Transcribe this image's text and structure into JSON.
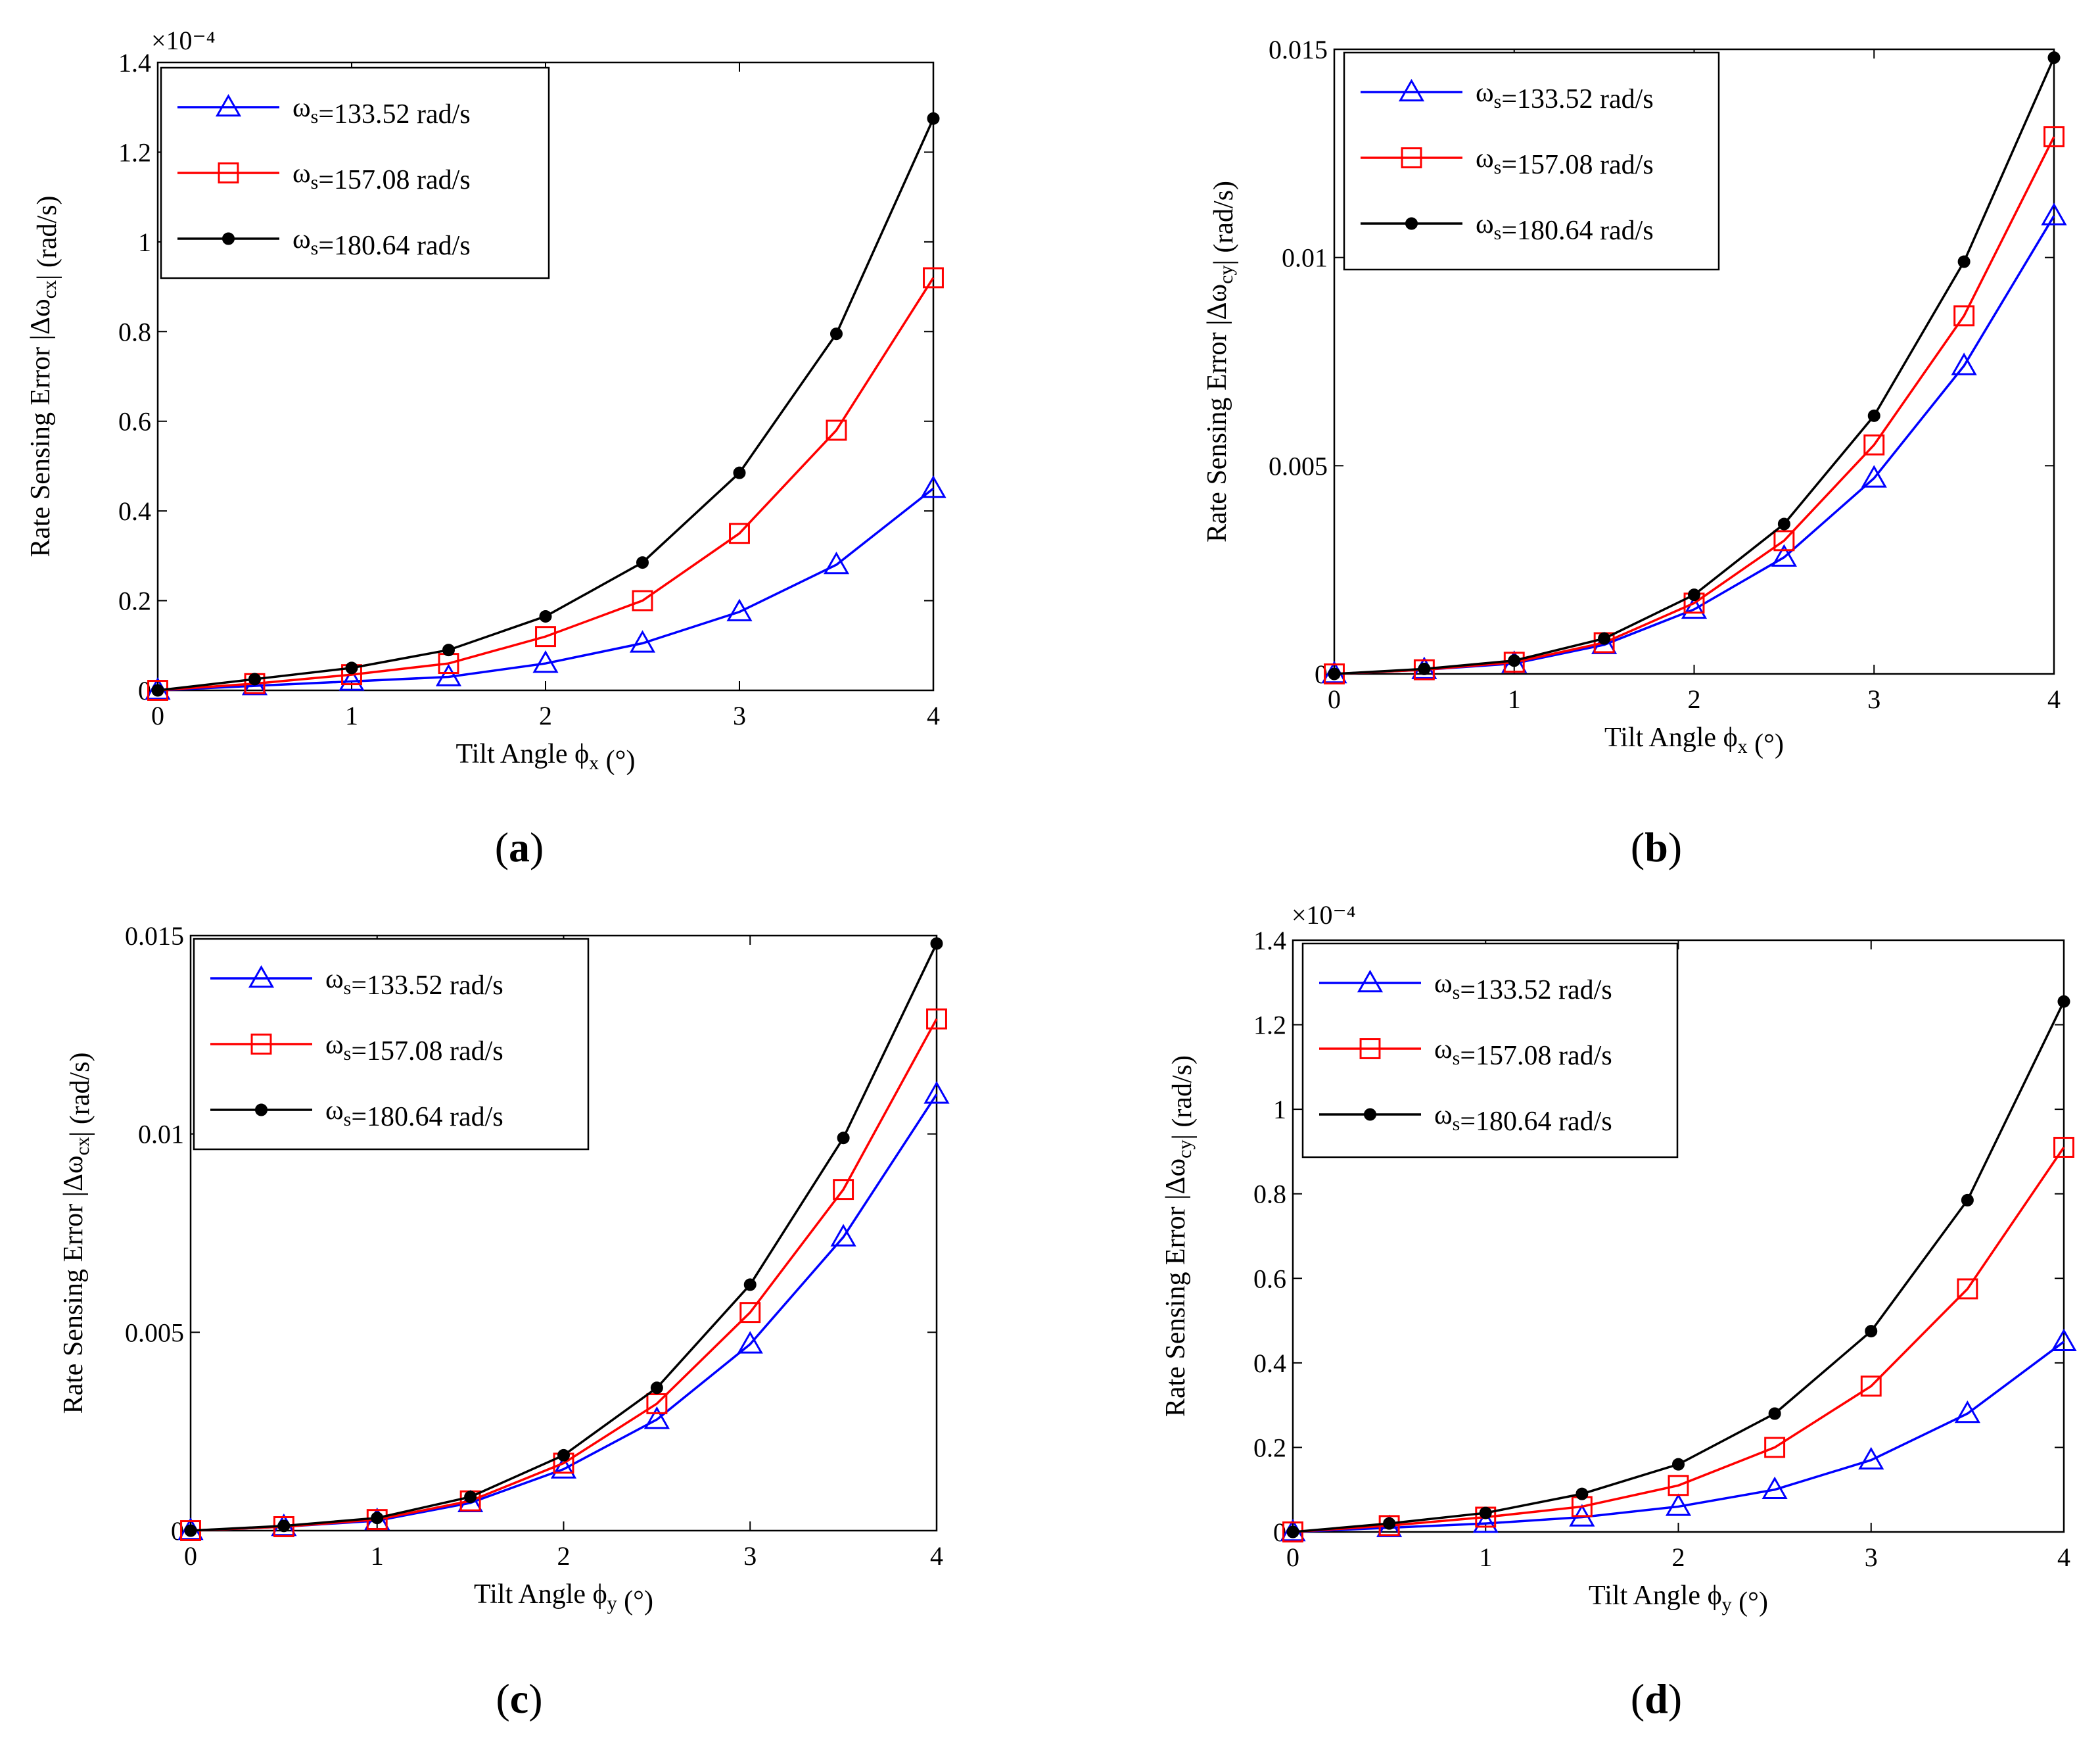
{
  "figure": {
    "panel_labels": [
      "(a)",
      "(b)",
      "(c)",
      "(d)"
    ]
  },
  "chart_data": [
    {
      "panel": "a",
      "type": "line",
      "xlabel": "Tilt Angle ϕx (°)",
      "ylabel": "Rate Sensing Error |Δωcx| (rad/s)",
      "exponent_label": "×10⁻⁴",
      "xlim": [
        0,
        4
      ],
      "ylim": [
        0,
        1.4
      ],
      "xticks": [
        0,
        1,
        2,
        3,
        4
      ],
      "xtick_labels": [
        "0",
        "1",
        "2",
        "3",
        "4"
      ],
      "yticks": [
        0,
        0.2,
        0.4,
        0.6,
        0.8,
        1.0,
        1.2,
        1.4
      ],
      "ytick_labels": [
        "0",
        "0.2",
        "0.4",
        "0.6",
        "0.8",
        "1",
        "1.2",
        "1.4"
      ],
      "x": [
        0,
        0.5,
        1,
        1.5,
        2,
        2.5,
        3,
        3.5,
        4
      ],
      "series": [
        {
          "name": "ωs=133.52 rad/s",
          "color": "#0000ff",
          "marker": "triangle",
          "values": [
            0,
            0.01,
            0.02,
            0.03,
            0.06,
            0.105,
            0.175,
            0.28,
            0.45
          ]
        },
        {
          "name": "ωs=157.08 rad/s",
          "color": "#ff0000",
          "marker": "square",
          "values": [
            0,
            0.015,
            0.035,
            0.06,
            0.12,
            0.2,
            0.35,
            0.58,
            0.92
          ]
        },
        {
          "name": "ωs=180.64 rad/s",
          "color": "#000000",
          "marker": "dot",
          "values": [
            0,
            0.025,
            0.05,
            0.09,
            0.165,
            0.285,
            0.485,
            0.795,
            1.275
          ]
        }
      ]
    },
    {
      "panel": "b",
      "type": "line",
      "xlabel": "Tilt Angle ϕx (°)",
      "ylabel": "Rate Sensing Error |Δωcy| (rad/s)",
      "exponent_label": "",
      "xlim": [
        0,
        4
      ],
      "ylim": [
        0,
        0.015
      ],
      "xticks": [
        0,
        1,
        2,
        3,
        4
      ],
      "xtick_labels": [
        "0",
        "1",
        "2",
        "3",
        "4"
      ],
      "yticks": [
        0,
        0.005,
        0.01,
        0.015
      ],
      "ytick_labels": [
        "0",
        "0.005",
        "0.01",
        "0.015"
      ],
      "x": [
        0,
        0.5,
        1,
        1.5,
        2,
        2.5,
        3,
        3.5,
        4
      ],
      "series": [
        {
          "name": "ωs=133.52 rad/s",
          "color": "#0000ff",
          "marker": "triangle",
          "values": [
            0,
            0.0001,
            0.00025,
            0.0007,
            0.00155,
            0.0028,
            0.0047,
            0.0074,
            0.011
          ]
        },
        {
          "name": "ωs=157.08 rad/s",
          "color": "#ff0000",
          "marker": "square",
          "values": [
            0,
            0.0001,
            0.00028,
            0.00075,
            0.0017,
            0.0032,
            0.0055,
            0.0086,
            0.0129
          ]
        },
        {
          "name": "ωs=180.64 rad/s",
          "color": "#000000",
          "marker": "dot",
          "values": [
            0,
            0.00012,
            0.00032,
            0.00085,
            0.0019,
            0.0036,
            0.0062,
            0.0099,
            0.0148
          ]
        }
      ]
    },
    {
      "panel": "c",
      "type": "line",
      "xlabel": "Tilt Angle ϕy (°)",
      "ylabel": "Rate Sensing Error |Δωcx| (rad/s)",
      "exponent_label": "",
      "xlim": [
        0,
        4
      ],
      "ylim": [
        0,
        0.015
      ],
      "xticks": [
        0,
        1,
        2,
        3,
        4
      ],
      "xtick_labels": [
        "0",
        "1",
        "2",
        "3",
        "4"
      ],
      "yticks": [
        0,
        0.005,
        0.01,
        0.015
      ],
      "ytick_labels": [
        "0",
        "0.005",
        "0.01",
        "0.015"
      ],
      "x": [
        0,
        0.5,
        1,
        1.5,
        2,
        2.5,
        3,
        3.5,
        4
      ],
      "series": [
        {
          "name": "ωs=133.52 rad/s",
          "color": "#0000ff",
          "marker": "triangle",
          "values": [
            0,
            0.0001,
            0.00025,
            0.0007,
            0.00155,
            0.0028,
            0.0047,
            0.0074,
            0.011
          ]
        },
        {
          "name": "ωs=157.08 rad/s",
          "color": "#ff0000",
          "marker": "square",
          "values": [
            0,
            0.0001,
            0.00028,
            0.00075,
            0.0017,
            0.0032,
            0.0055,
            0.0086,
            0.0129
          ]
        },
        {
          "name": "ωs=180.64 rad/s",
          "color": "#000000",
          "marker": "dot",
          "values": [
            0,
            0.00012,
            0.00032,
            0.00085,
            0.0019,
            0.0036,
            0.0062,
            0.0099,
            0.0148
          ]
        }
      ]
    },
    {
      "panel": "d",
      "type": "line",
      "xlabel": "Tilt Angle ϕy (°)",
      "ylabel": "Rate Sensing Error |Δωcy| (rad/s)",
      "exponent_label": "×10⁻⁴",
      "xlim": [
        0,
        4
      ],
      "ylim": [
        0,
        1.4
      ],
      "xticks": [
        0,
        1,
        2,
        3,
        4
      ],
      "xtick_labels": [
        "0",
        "1",
        "2",
        "3",
        "4"
      ],
      "yticks": [
        0,
        0.2,
        0.4,
        0.6,
        0.8,
        1.0,
        1.2,
        1.4
      ],
      "ytick_labels": [
        "0",
        "0.2",
        "0.4",
        "0.6",
        "0.8",
        "1",
        "1.2",
        "1.4"
      ],
      "x": [
        0,
        0.5,
        1,
        1.5,
        2,
        2.5,
        3,
        3.5,
        4
      ],
      "series": [
        {
          "name": "ωs=133.52 rad/s",
          "color": "#0000ff",
          "marker": "triangle",
          "values": [
            0,
            0.01,
            0.02,
            0.035,
            0.06,
            0.1,
            0.17,
            0.28,
            0.45
          ]
        },
        {
          "name": "ωs=157.08 rad/s",
          "color": "#ff0000",
          "marker": "square",
          "values": [
            0,
            0.015,
            0.035,
            0.06,
            0.11,
            0.2,
            0.345,
            0.575,
            0.91
          ]
        },
        {
          "name": "ωs=180.64 rad/s",
          "color": "#000000",
          "marker": "dot",
          "values": [
            0,
            0.02,
            0.045,
            0.09,
            0.16,
            0.28,
            0.475,
            0.785,
            1.255
          ]
        }
      ]
    }
  ]
}
